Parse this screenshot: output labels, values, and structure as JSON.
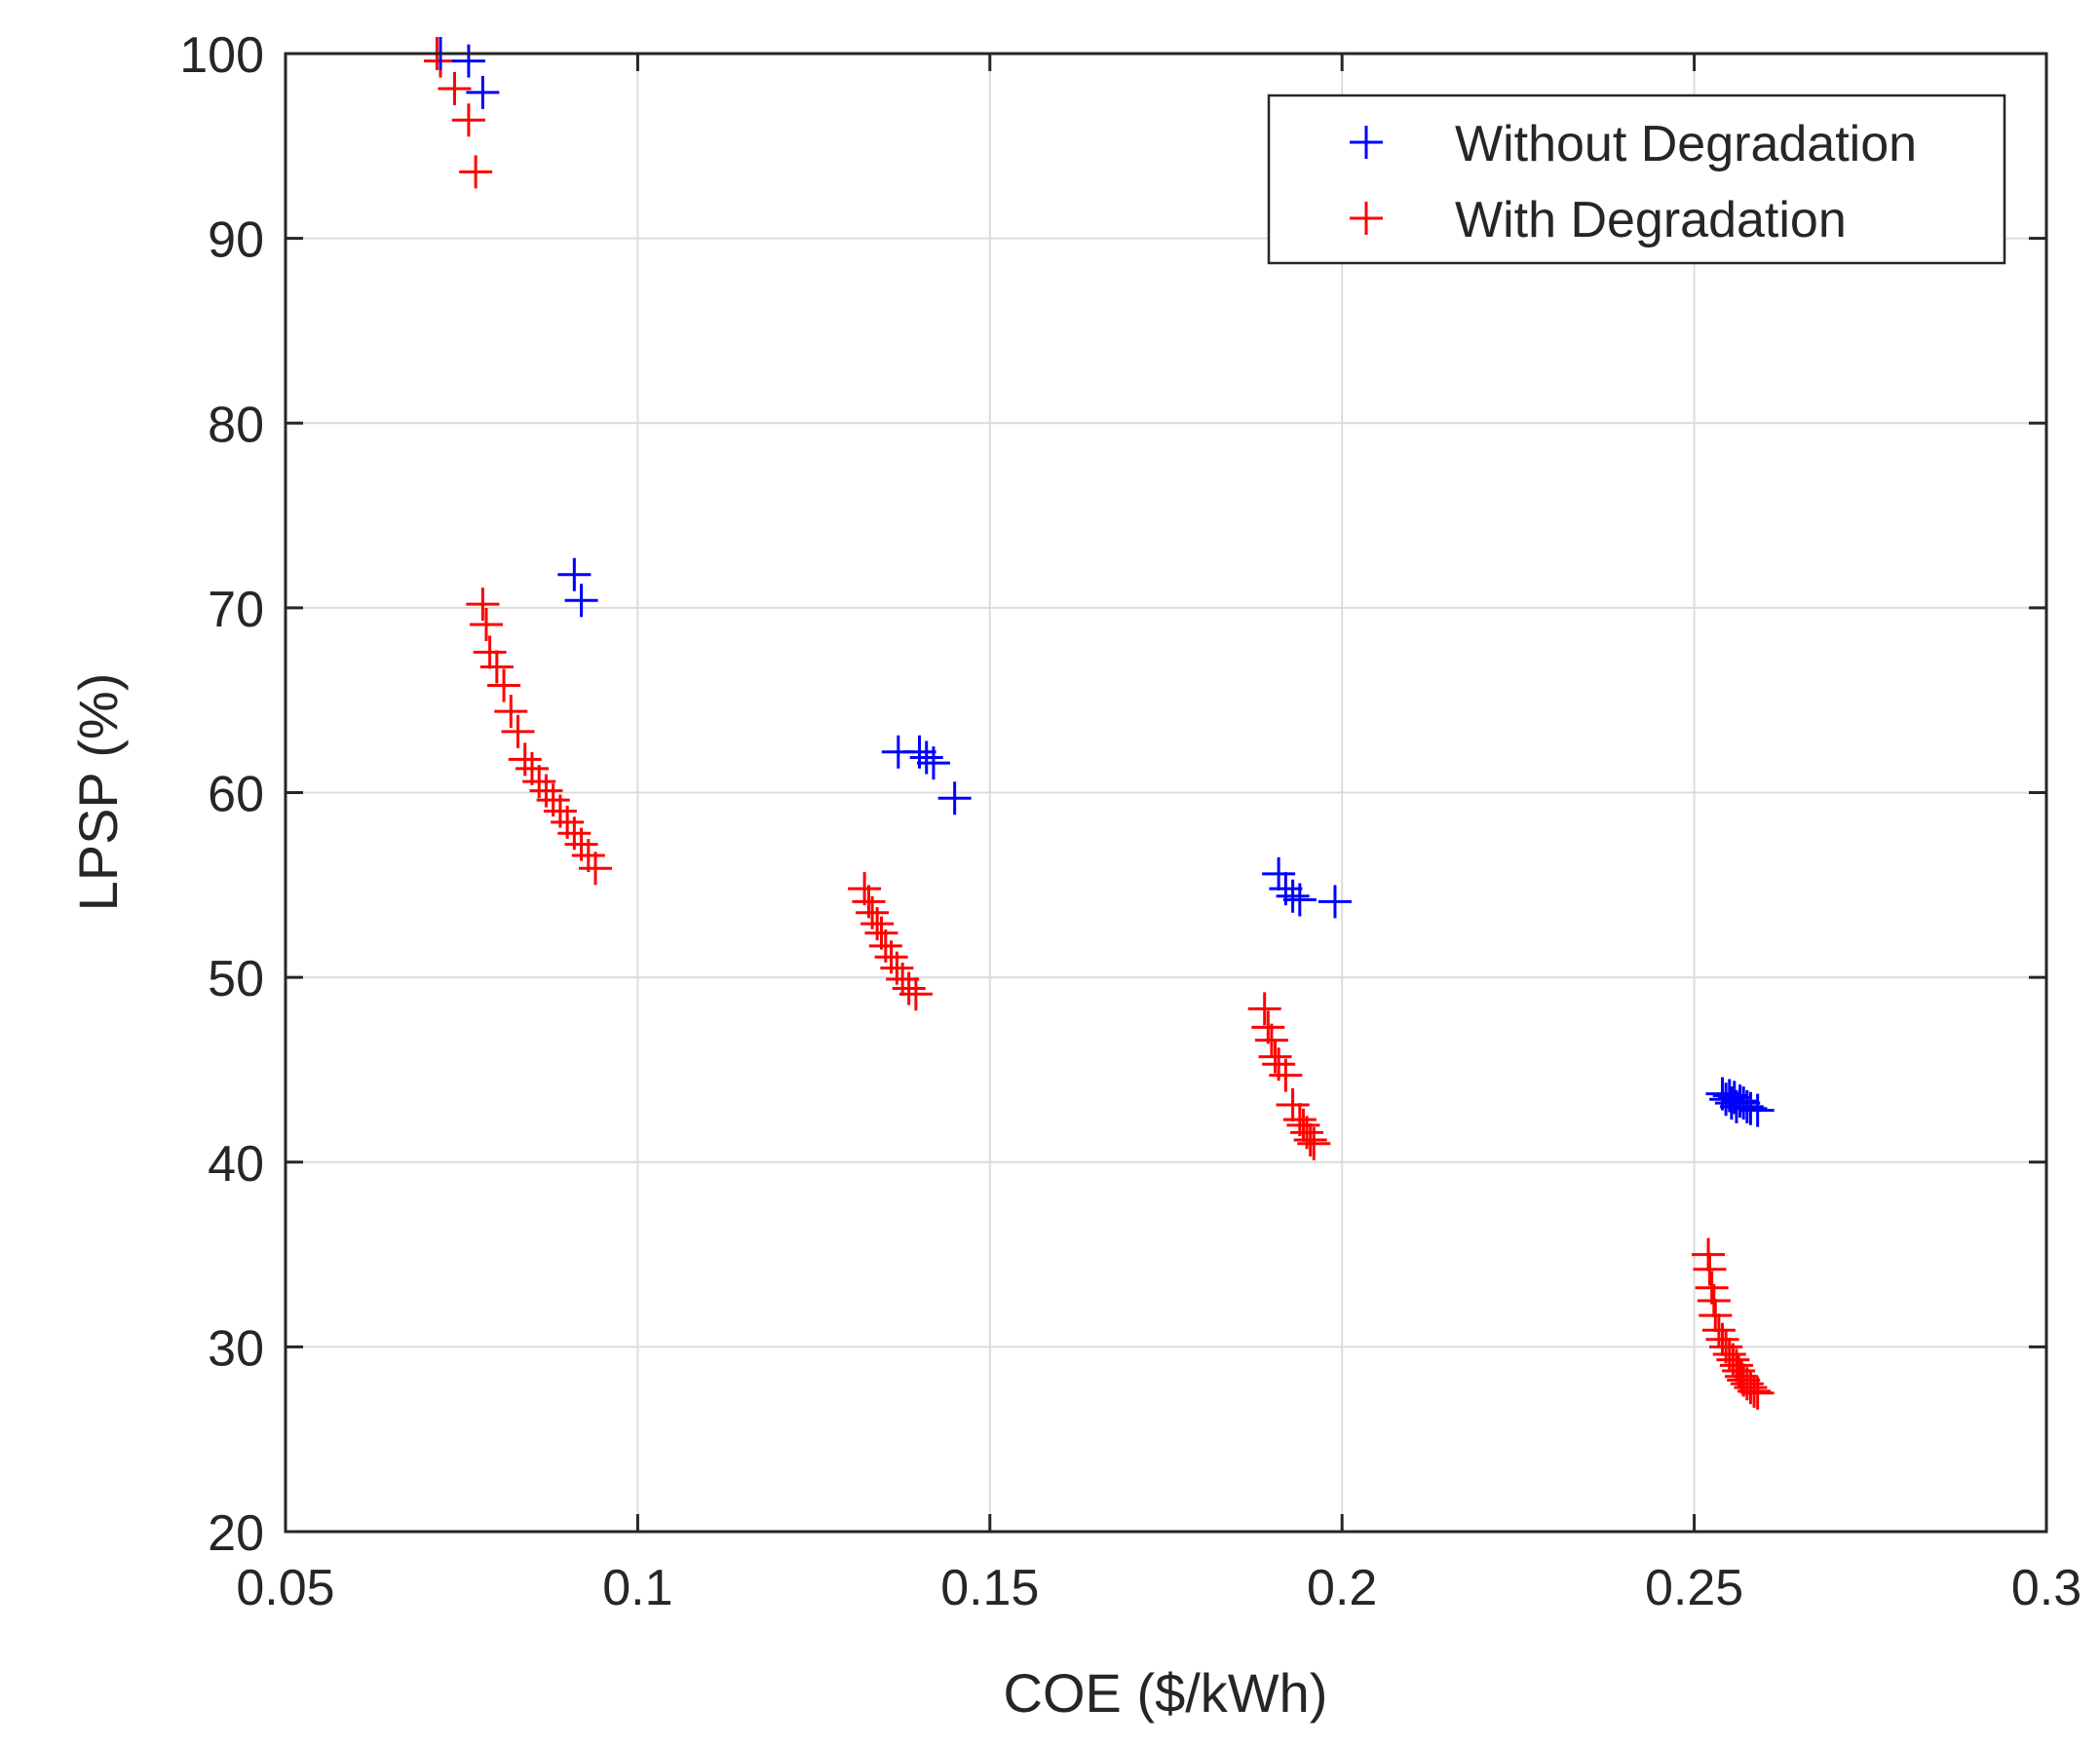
{
  "chart_data": {
    "type": "scatter",
    "title": "",
    "xlabel": "COE ($/kWh)",
    "ylabel": "LPSP (%)",
    "xlim": [
      0.05,
      0.3
    ],
    "ylim": [
      20,
      100
    ],
    "grid": true,
    "legend_position": "top-right",
    "x_ticks": [
      0.05,
      0.1,
      0.15,
      0.2,
      0.25,
      0.3
    ],
    "x_tick_labels": [
      "0.05",
      "0.1",
      "0.15",
      "0.2",
      "0.25",
      "0.3"
    ],
    "y_ticks": [
      20,
      30,
      40,
      50,
      60,
      70,
      80,
      90,
      100
    ],
    "y_tick_labels": [
      "20",
      "30",
      "40",
      "50",
      "60",
      "70",
      "80",
      "90",
      "100"
    ],
    "series": [
      {
        "name": "Without Degradation",
        "color": "#0000ff",
        "marker": "+",
        "points": [
          [
            0.072,
            100
          ],
          [
            0.076,
            99.6
          ],
          [
            0.078,
            97.9
          ],
          [
            0.091,
            71.8
          ],
          [
            0.092,
            70.4
          ],
          [
            0.137,
            62.2
          ],
          [
            0.14,
            62.2
          ],
          [
            0.141,
            61.9
          ],
          [
            0.142,
            61.6
          ],
          [
            0.145,
            59.7
          ],
          [
            0.191,
            55.6
          ],
          [
            0.192,
            54.8
          ],
          [
            0.193,
            54.4
          ],
          [
            0.194,
            54.2
          ],
          [
            0.199,
            54.1
          ],
          [
            0.254,
            43.7
          ],
          [
            0.2545,
            43.4
          ],
          [
            0.255,
            43.6
          ],
          [
            0.2553,
            43.2
          ],
          [
            0.2557,
            43.5
          ],
          [
            0.256,
            43.0
          ],
          [
            0.2565,
            43.3
          ],
          [
            0.257,
            43.2
          ],
          [
            0.2575,
            43.0
          ],
          [
            0.258,
            42.9
          ],
          [
            0.259,
            42.8
          ]
        ]
      },
      {
        "name": "With Degradation",
        "color": "#ff0000",
        "marker": "+",
        "points": [
          [
            0.0715,
            100
          ],
          [
            0.072,
            99.6
          ],
          [
            0.074,
            98.1
          ],
          [
            0.076,
            96.4
          ],
          [
            0.077,
            93.6
          ],
          [
            0.078,
            70.2
          ],
          [
            0.0785,
            69.1
          ],
          [
            0.079,
            67.6
          ],
          [
            0.08,
            66.8
          ],
          [
            0.081,
            65.8
          ],
          [
            0.082,
            64.4
          ],
          [
            0.083,
            63.3
          ],
          [
            0.084,
            61.8
          ],
          [
            0.085,
            61.3
          ],
          [
            0.086,
            60.6
          ],
          [
            0.087,
            60.1
          ],
          [
            0.088,
            59.6
          ],
          [
            0.089,
            59.0
          ],
          [
            0.09,
            58.4
          ],
          [
            0.091,
            57.8
          ],
          [
            0.092,
            57.2
          ],
          [
            0.093,
            56.6
          ],
          [
            0.094,
            55.9
          ],
          [
            0.1322,
            54.8
          ],
          [
            0.1328,
            54.1
          ],
          [
            0.1333,
            53.5
          ],
          [
            0.134,
            52.9
          ],
          [
            0.1346,
            52.4
          ],
          [
            0.1352,
            51.7
          ],
          [
            0.136,
            51.1
          ],
          [
            0.1368,
            50.5
          ],
          [
            0.1376,
            49.9
          ],
          [
            0.1385,
            49.4
          ],
          [
            0.1395,
            49.1
          ],
          [
            0.189,
            48.3
          ],
          [
            0.1895,
            47.3
          ],
          [
            0.19,
            46.6
          ],
          [
            0.1905,
            45.7
          ],
          [
            0.191,
            45.3
          ],
          [
            0.192,
            44.7
          ],
          [
            0.193,
            43.1
          ],
          [
            0.194,
            42.3
          ],
          [
            0.1945,
            42.0
          ],
          [
            0.195,
            41.6
          ],
          [
            0.1955,
            41.2
          ],
          [
            0.196,
            41.0
          ],
          [
            0.252,
            35.0
          ],
          [
            0.2522,
            34.2
          ],
          [
            0.2525,
            33.2
          ],
          [
            0.2528,
            32.5
          ],
          [
            0.253,
            31.7
          ],
          [
            0.2535,
            30.9
          ],
          [
            0.254,
            30.4
          ],
          [
            0.2545,
            30.0
          ],
          [
            0.255,
            29.6
          ],
          [
            0.2555,
            29.3
          ],
          [
            0.256,
            29.0
          ],
          [
            0.2563,
            28.7
          ],
          [
            0.2567,
            28.4
          ],
          [
            0.257,
            28.2
          ],
          [
            0.2575,
            28.0
          ],
          [
            0.258,
            27.8
          ],
          [
            0.2585,
            27.6
          ],
          [
            0.259,
            27.5
          ]
        ]
      }
    ]
  }
}
